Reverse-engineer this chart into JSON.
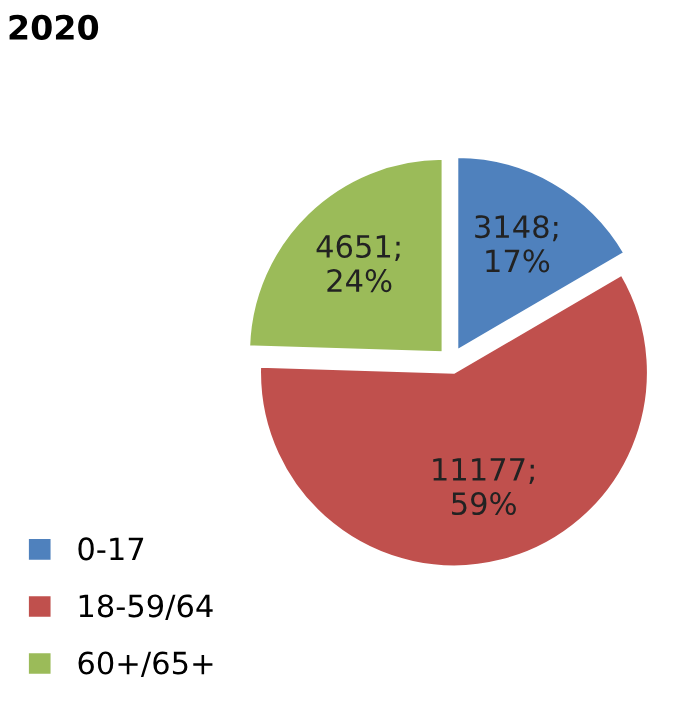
{
  "chart_data": {
    "type": "pie",
    "title": "2020",
    "categories": [
      "0-17",
      "18-59/64",
      "60+/65+"
    ],
    "values": [
      3148,
      11177,
      4651
    ],
    "colors": [
      "#4f81bd",
      "#c0504d",
      "#9bbb59"
    ],
    "value_labels": [
      "3148;\n17%",
      "11177;\n59%",
      "4651;\n24%"
    ],
    "legend": "bottom left"
  }
}
